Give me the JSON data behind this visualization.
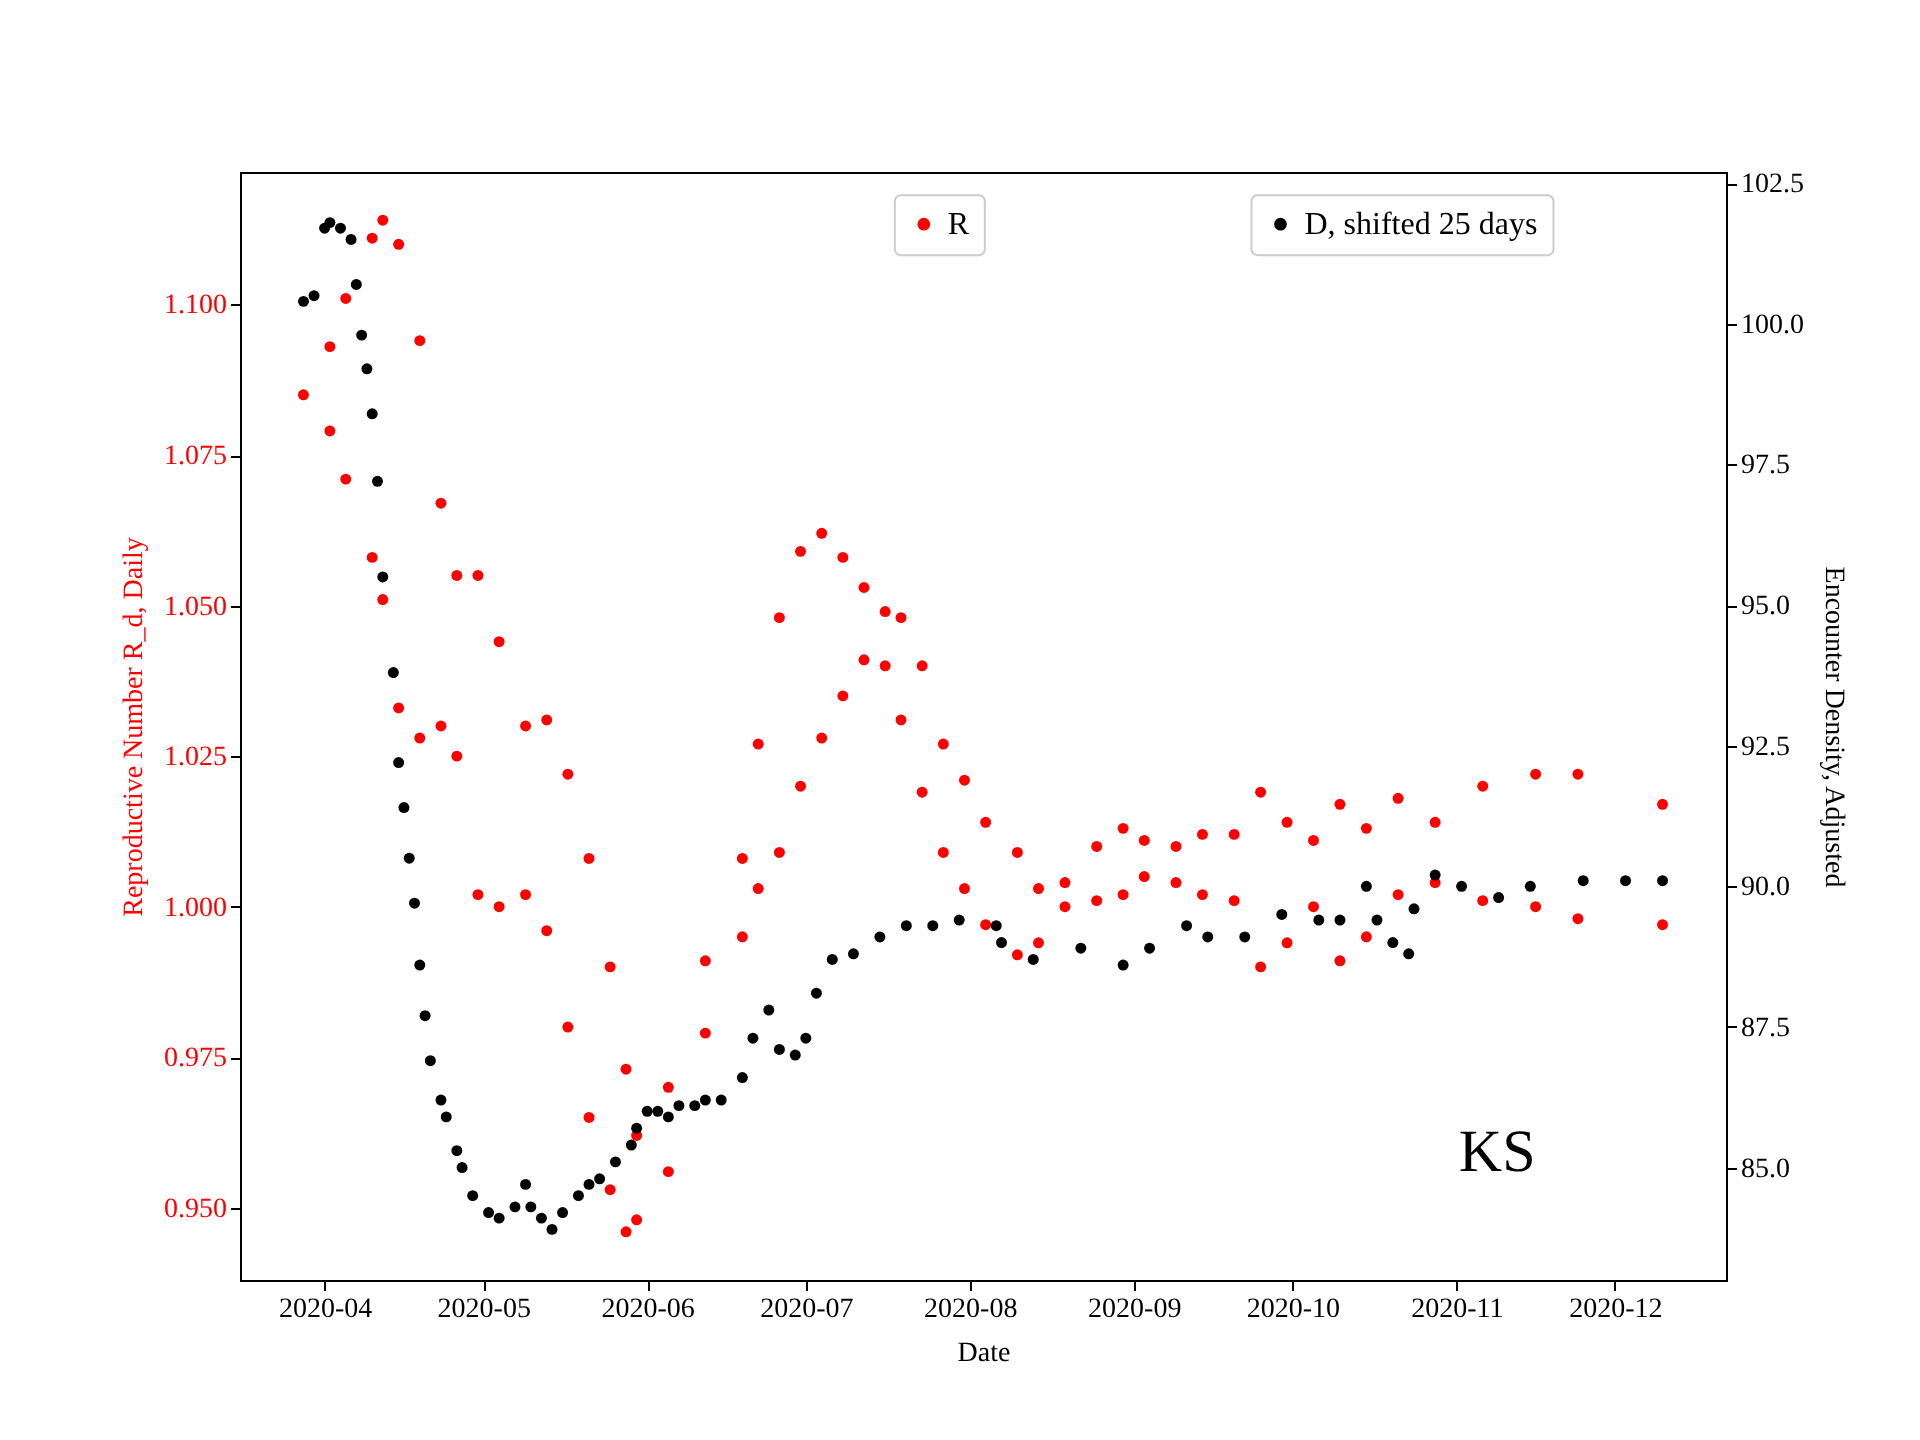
{
  "chart_data": {
    "type": "scatter",
    "xlabel": "Date",
    "ylabel": "Reproductive Number R_d, Daily",
    "y2label": "Encounter Density, Adjusted",
    "legend": "top right",
    "marker": "circle",
    "annotations": [
      "KS"
    ],
    "xlim": [
      "2020-03-16",
      "2020-12-22"
    ],
    "xticks": [
      "2020-04",
      "2020-05",
      "2020-06",
      "2020-07",
      "2020-08",
      "2020-09",
      "2020-10",
      "2020-11",
      "2020-12"
    ],
    "ylim": [
      0.938,
      1.122
    ],
    "yticks": [
      {
        "value": 0.95,
        "label": "0.950"
      },
      {
        "value": 0.975,
        "label": "0.975"
      },
      {
        "value": 1.0,
        "label": "1.000"
      },
      {
        "value": 1.025,
        "label": "1.025"
      },
      {
        "value": 1.05,
        "label": "1.050"
      },
      {
        "value": 1.075,
        "label": "1.075"
      },
      {
        "value": 1.1,
        "label": "1.100"
      }
    ],
    "y2lim": [
      83.0,
      102.7
    ],
    "y2ticks": [
      {
        "value": 85,
        "label": "85.0"
      },
      {
        "value": 87.5,
        "label": "87.5"
      },
      {
        "value": 90,
        "label": "90.0"
      },
      {
        "value": 92.5,
        "label": "92.5"
      },
      {
        "value": 95,
        "label": "95.0"
      },
      {
        "value": 97.5,
        "label": "97.5"
      },
      {
        "value": 100,
        "label": "100.0"
      },
      {
        "value": 102.5,
        "label": "102.5"
      }
    ],
    "series": [
      {
        "name": "R",
        "color": "#ff0000",
        "x": [
          "2020-03-28",
          "2020-04-02",
          "2020-04-02",
          "2020-04-05",
          "2020-04-05",
          "2020-04-10",
          "2020-04-10",
          "2020-04-12",
          "2020-04-12",
          "2020-04-15",
          "2020-04-15",
          "2020-04-19",
          "2020-04-19",
          "2020-04-23",
          "2020-04-23",
          "2020-04-26",
          "2020-04-26",
          "2020-04-30",
          "2020-04-30",
          "2020-05-04",
          "2020-05-04",
          "2020-05-09",
          "2020-05-09",
          "2020-05-13",
          "2020-05-13",
          "2020-05-17",
          "2020-05-17",
          "2020-05-21",
          "2020-05-21",
          "2020-05-25",
          "2020-05-25",
          "2020-05-28",
          "2020-05-28",
          "2020-05-30",
          "2020-05-30",
          "2020-06-05",
          "2020-06-05",
          "2020-06-12",
          "2020-06-12",
          "2020-06-19",
          "2020-06-19",
          "2020-06-22",
          "2020-06-22",
          "2020-06-26",
          "2020-06-26",
          "2020-06-30",
          "2020-06-30",
          "2020-07-04",
          "2020-07-04",
          "2020-07-08",
          "2020-07-08",
          "2020-07-12",
          "2020-07-12",
          "2020-07-16",
          "2020-07-16",
          "2020-07-19",
          "2020-07-19",
          "2020-07-23",
          "2020-07-23",
          "2020-07-27",
          "2020-07-27",
          "2020-07-31",
          "2020-07-31",
          "2020-08-04",
          "2020-08-04",
          "2020-08-10",
          "2020-08-10",
          "2020-08-14",
          "2020-08-14",
          "2020-08-19",
          "2020-08-19",
          "2020-08-25",
          "2020-08-25",
          "2020-08-30",
          "2020-08-30",
          "2020-09-03",
          "2020-09-03",
          "2020-09-09",
          "2020-09-09",
          "2020-09-14",
          "2020-09-14",
          "2020-09-20",
          "2020-09-20",
          "2020-09-25",
          "2020-09-25",
          "2020-09-30",
          "2020-09-30",
          "2020-10-05",
          "2020-10-05",
          "2020-10-10",
          "2020-10-10",
          "2020-10-15",
          "2020-10-15",
          "2020-10-21",
          "2020-10-21",
          "2020-10-28",
          "2020-10-28",
          "2020-11-06",
          "2020-11-06",
          "2020-11-16",
          "2020-11-16",
          "2020-11-24",
          "2020-11-24",
          "2020-12-10",
          "2020-12-10"
        ],
        "values": [
          1.085,
          1.093,
          1.079,
          1.101,
          1.071,
          1.111,
          1.058,
          1.114,
          1.051,
          1.11,
          1.033,
          1.094,
          1.028,
          1.067,
          1.03,
          1.055,
          1.025,
          1.055,
          1.002,
          1.044,
          1.0,
          1.03,
          1.002,
          1.031,
          0.996,
          1.022,
          0.98,
          1.008,
          0.965,
          0.99,
          0.953,
          0.973,
          0.946,
          0.962,
          0.948,
          0.97,
          0.956,
          0.991,
          0.979,
          1.008,
          0.995,
          1.027,
          1.003,
          1.048,
          1.009,
          1.059,
          1.02,
          1.062,
          1.028,
          1.058,
          1.035,
          1.053,
          1.041,
          1.049,
          1.04,
          1.048,
          1.031,
          1.04,
          1.019,
          1.027,
          1.009,
          1.021,
          1.003,
          1.014,
          0.997,
          1.009,
          0.992,
          1.003,
          0.994,
          1.004,
          1.0,
          1.01,
          1.001,
          1.013,
          1.002,
          1.011,
          1.005,
          1.01,
          1.004,
          1.012,
          1.002,
          1.012,
          1.001,
          1.019,
          0.99,
          1.014,
          0.994,
          1.011,
          1.0,
          1.017,
          0.991,
          1.013,
          0.995,
          1.018,
          1.002,
          1.014,
          1.004,
          1.02,
          1.001,
          1.022,
          1.0,
          1.022,
          0.998,
          1.017,
          0.997
        ]
      },
      {
        "name": "D, shifted 25 days",
        "color": "#000000",
        "axis": "y2",
        "x": [
          "2020-03-28",
          "2020-03-30",
          "2020-04-01",
          "2020-04-02",
          "2020-04-04",
          "2020-04-06",
          "2020-04-07",
          "2020-04-08",
          "2020-04-09",
          "2020-04-10",
          "2020-04-11",
          "2020-04-12",
          "2020-04-14",
          "2020-04-15",
          "2020-04-16",
          "2020-04-17",
          "2020-04-18",
          "2020-04-19",
          "2020-04-20",
          "2020-04-21",
          "2020-04-23",
          "2020-04-24",
          "2020-04-26",
          "2020-04-27",
          "2020-04-29",
          "2020-05-02",
          "2020-05-04",
          "2020-05-07",
          "2020-05-09",
          "2020-05-10",
          "2020-05-12",
          "2020-05-14",
          "2020-05-16",
          "2020-05-19",
          "2020-05-21",
          "2020-05-23",
          "2020-05-26",
          "2020-05-29",
          "2020-05-30",
          "2020-06-01",
          "2020-06-03",
          "2020-06-05",
          "2020-06-07",
          "2020-06-10",
          "2020-06-12",
          "2020-06-15",
          "2020-06-19",
          "2020-06-21",
          "2020-06-24",
          "2020-06-26",
          "2020-06-29",
          "2020-07-01",
          "2020-07-03",
          "2020-07-06",
          "2020-07-10",
          "2020-07-15",
          "2020-07-20",
          "2020-07-25",
          "2020-07-30",
          "2020-08-06",
          "2020-08-07",
          "2020-08-13",
          "2020-08-22",
          "2020-08-30",
          "2020-09-04",
          "2020-09-11",
          "2020-09-15",
          "2020-09-22",
          "2020-09-29",
          "2020-10-06",
          "2020-10-10",
          "2020-10-15",
          "2020-10-17",
          "2020-10-20",
          "2020-10-23",
          "2020-10-24",
          "2020-10-28",
          "2020-11-02",
          "2020-11-09",
          "2020-11-15",
          "2020-11-25",
          "2020-12-03",
          "2020-12-10"
        ],
        "values": [
          100.4,
          100.5,
          101.7,
          101.8,
          101.7,
          101.5,
          100.7,
          99.8,
          99.2,
          98.4,
          97.2,
          95.5,
          93.8,
          92.2,
          91.4,
          90.5,
          89.7,
          88.6,
          87.7,
          86.9,
          86.2,
          85.9,
          85.3,
          85.0,
          84.5,
          84.2,
          84.1,
          84.3,
          84.7,
          84.3,
          84.1,
          83.9,
          84.2,
          84.5,
          84.7,
          84.8,
          85.1,
          85.4,
          85.7,
          86.0,
          86.0,
          85.9,
          86.1,
          86.1,
          86.2,
          86.2,
          86.6,
          87.3,
          87.8,
          87.1,
          87.0,
          87.3,
          88.1,
          88.7,
          88.8,
          89.1,
          89.3,
          89.3,
          89.4,
          89.3,
          89.0,
          88.7,
          88.9,
          88.6,
          88.9,
          89.3,
          89.1,
          89.1,
          89.5,
          89.4,
          89.4,
          90.0,
          89.4,
          89.0,
          88.8,
          89.6,
          90.2,
          90.0,
          89.8,
          90.0,
          90.1,
          90.1,
          90.1
        ]
      }
    ]
  }
}
